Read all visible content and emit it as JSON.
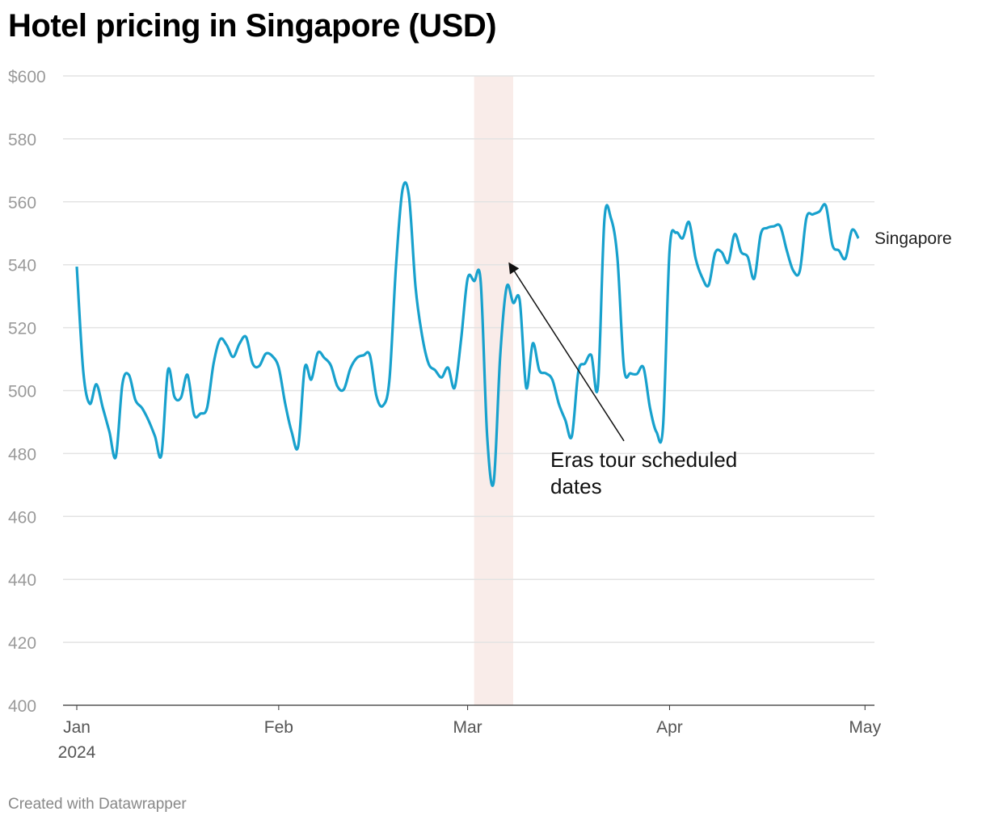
{
  "chart_data": {
    "type": "line",
    "title": "Hotel pricing in Singapore (USD)",
    "footer": "Created with Datawrapper",
    "ylim": [
      400,
      600
    ],
    "yticks": [
      400,
      420,
      440,
      460,
      480,
      500,
      520,
      540,
      560,
      580,
      600
    ],
    "ytick_labels": [
      "400",
      "420",
      "440",
      "460",
      "480",
      "500",
      "520",
      "540",
      "560",
      "580",
      "$600"
    ],
    "xlim": [
      "2024-01-01",
      "2024-05-01"
    ],
    "xticks": [
      {
        "date": "2024-01-01",
        "label": "Jan",
        "sub": "2024"
      },
      {
        "date": "2024-02-01",
        "label": "Feb"
      },
      {
        "date": "2024-03-01",
        "label": "Mar"
      },
      {
        "date": "2024-04-01",
        "label": "Apr"
      },
      {
        "date": "2024-05-01",
        "label": "May"
      }
    ],
    "grid": true,
    "colors": {
      "line": "#18a1cd",
      "band": "#f9ece9",
      "grid": "#e3e3e3",
      "axis": "#333333"
    },
    "series": [
      {
        "name": "Singapore",
        "x_start": "2024-01-01",
        "x_step": "1 day",
        "values": [
          539.4,
          506,
          495.8,
          502,
          494.5,
          487,
          479,
          502,
          505,
          497,
          494.5,
          490.6,
          485.5,
          479.6,
          506.5,
          498,
          497.8,
          505,
          492.4,
          492.7,
          494.5,
          508.6,
          516.3,
          514.5,
          510.7,
          515,
          517,
          508.6,
          507.8,
          511.7,
          511,
          507.3,
          495.8,
          486.8,
          482.4,
          507.3,
          503.5,
          512,
          510.4,
          508,
          501.4,
          500.4,
          507,
          510.4,
          511.2,
          511.2,
          498.3,
          495.2,
          503.5,
          539.4,
          563.8,
          561.7,
          533,
          517.6,
          508.6,
          506.5,
          504.2,
          507.3,
          500.9,
          516.3,
          535.6,
          534.8,
          534.8,
          485.5,
          470.9,
          511,
          533,
          527.9,
          528.6,
          500.9,
          515,
          506.5,
          505.5,
          503.5,
          495.8,
          490.6,
          485.5,
          506,
          508.6,
          511.2,
          501.4,
          554.3,
          554.8,
          542,
          507.3,
          505.5,
          505.3,
          507.3,
          494.5,
          486.8,
          488.6,
          544.5,
          550.2,
          548.4,
          553.5,
          542,
          536,
          533.5,
          543.8,
          544,
          540.7,
          549.7,
          544,
          542.5,
          535.6,
          549.7,
          551.7,
          552.2,
          552.2,
          544.5,
          538.1,
          538.1,
          554.8,
          556,
          556.9,
          558.7,
          546.3,
          544.5,
          542,
          551,
          548.4
        ]
      }
    ],
    "highlight_band": {
      "start": "2024-03-02",
      "end": "2024-03-08"
    },
    "annotation": {
      "text_line1": "Eras tour scheduled",
      "text_line2": "dates",
      "arrow_from": {
        "date": "2024-03-25",
        "value": 484
      },
      "arrow_to": {
        "date": "2024-03-08",
        "value": 541
      }
    }
  }
}
